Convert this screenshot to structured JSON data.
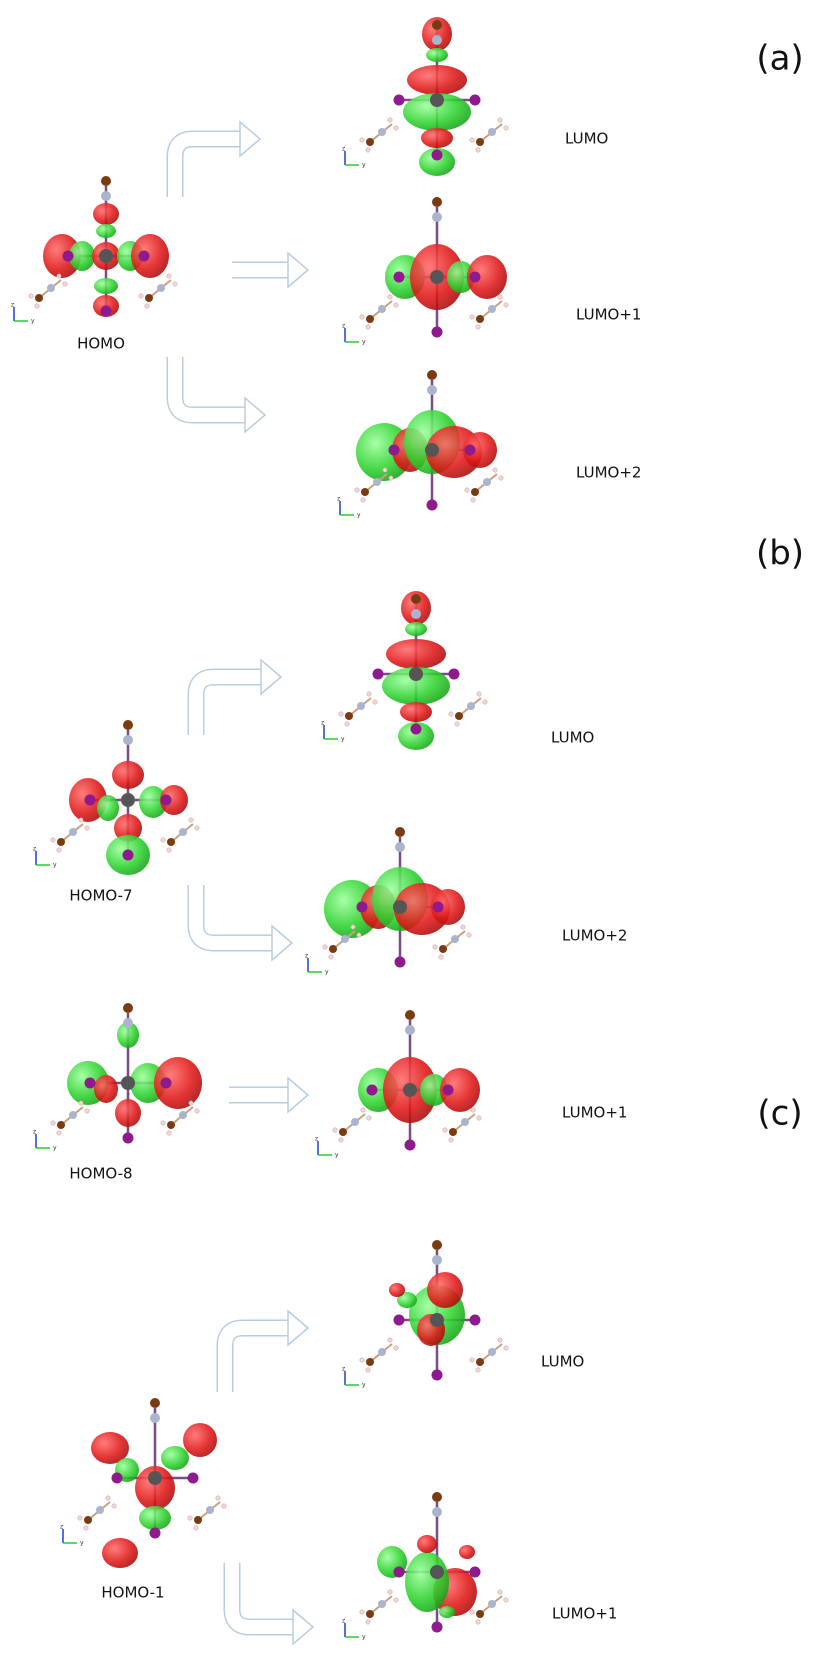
{
  "panels": [
    {
      "label": "(a)",
      "orbitals": [
        {
          "label": "HOMO"
        },
        {
          "label": "LUMO"
        },
        {
          "label": "LUMO+1"
        },
        {
          "label": "LUMO+2"
        }
      ]
    },
    {
      "label": "(b)",
      "orbitals": [
        {
          "label": "HOMO-7"
        },
        {
          "label": "LUMO"
        },
        {
          "label": "LUMO+2"
        },
        {
          "label": "HOMO-8"
        },
        {
          "label": "LUMO+1"
        }
      ]
    },
    {
      "label": "(c)",
      "orbitals": [
        {
          "label": "HOMO-1"
        },
        {
          "label": "LUMO"
        },
        {
          "label": "LUMO+1"
        }
      ]
    }
  ],
  "axis": {
    "z": "z",
    "y": "y"
  }
}
